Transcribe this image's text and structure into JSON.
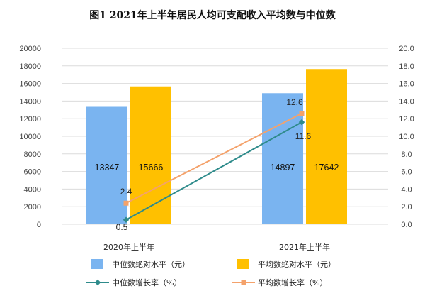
{
  "title": "图1    2021年上半年居民人均可支配收入平均数与中位数",
  "chart_data": {
    "type": "bar",
    "categories": [
      "2020年上半年",
      "2021年上半年"
    ],
    "series": [
      {
        "name": "中位数绝对水平（元）",
        "kind": "bar",
        "axis": "left",
        "values": [
          13347,
          14897
        ],
        "labels": [
          "13347",
          "14897"
        ],
        "color": "#7ab4f0"
      },
      {
        "name": "平均数绝对水平（元）",
        "kind": "bar",
        "axis": "left",
        "values": [
          15666,
          17642
        ],
        "labels": [
          "15666",
          "17642"
        ],
        "color": "#ffc000"
      },
      {
        "name": "中位数增长率（%）",
        "kind": "line",
        "axis": "right",
        "values": [
          0.5,
          11.6
        ],
        "labels": [
          "0.5",
          "11.6"
        ],
        "color": "#2e8b8b"
      },
      {
        "name": "平均数增长率（%）",
        "kind": "line",
        "axis": "right",
        "values": [
          2.4,
          12.6
        ],
        "labels": [
          "2.4",
          "12.6"
        ],
        "color": "#f4a26b"
      }
    ],
    "left_axis": {
      "ticks": [
        "0",
        "2000",
        "4000",
        "6000",
        "8000",
        "10000",
        "12000",
        "14000",
        "16000",
        "18000",
        "20000"
      ],
      "ylim": [
        0,
        20000
      ]
    },
    "right_axis": {
      "ticks": [
        "0.0",
        "2.0",
        "4.0",
        "6.0",
        "8.0",
        "10.0",
        "12.0",
        "14.0",
        "16.0",
        "18.0",
        "20.0"
      ],
      "ylim": [
        0,
        20
      ]
    },
    "grid": true,
    "legend": "bottom"
  }
}
